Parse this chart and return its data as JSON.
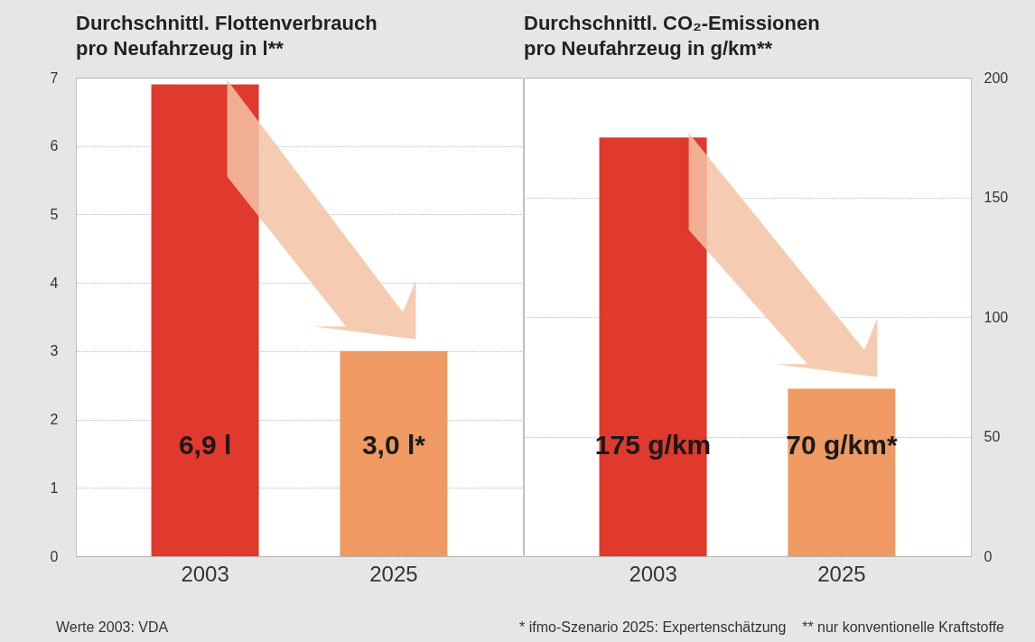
{
  "chart_data": [
    {
      "type": "bar",
      "title": "Durchschnittl. Flottenverbrauch\npro Neufahrzeug in l**",
      "categories": [
        "2003",
        "2025"
      ],
      "values": [
        6.9,
        3.0
      ],
      "colors": [
        "#e0392e",
        "#ef9a62"
      ],
      "value_labels": [
        "6,9 l",
        "3,0 l*"
      ],
      "ylim": [
        0,
        7
      ],
      "yticks": [
        0,
        1,
        2,
        3,
        4,
        5,
        6,
        7
      ],
      "grid": "y",
      "annotations": [
        "Werte 2003: VDA"
      ]
    },
    {
      "type": "bar",
      "title": "Durchschnittl. CO₂-Emissionen\npro Neufahrzeug in g/km**",
      "categories": [
        "2003",
        "2025"
      ],
      "series": [
        {
          "axis": "y2",
          "values": [
            175,
            70
          ],
          "colors": [
            "#e0392e",
            "#ef9a62"
          ],
          "value_labels": [
            "175 g/km",
            "70 g/km*"
          ]
        }
      ],
      "y2lim": [
        0,
        200
      ],
      "y2ticks": [
        0,
        50,
        100,
        150,
        200
      ],
      "grid": "y",
      "annotations": [
        "* ifmo-Szenario 2025: Expertenschätzung    ** nur konventionelle Kraftstoffe"
      ]
    }
  ]
}
